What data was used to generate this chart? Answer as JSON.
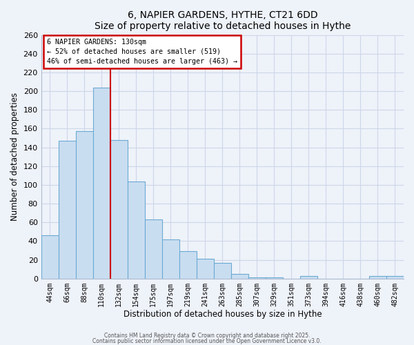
{
  "title": "6, NAPIER GARDENS, HYTHE, CT21 6DD",
  "subtitle": "Size of property relative to detached houses in Hythe",
  "xlabel": "Distribution of detached houses by size in Hythe",
  "ylabel": "Number of detached properties",
  "bin_labels": [
    "44sqm",
    "66sqm",
    "88sqm",
    "110sqm",
    "132sqm",
    "154sqm",
    "175sqm",
    "197sqm",
    "219sqm",
    "241sqm",
    "263sqm",
    "285sqm",
    "307sqm",
    "329sqm",
    "351sqm",
    "373sqm",
    "394sqm",
    "416sqm",
    "438sqm",
    "460sqm",
    "482sqm"
  ],
  "bar_values": [
    46,
    147,
    157,
    204,
    148,
    104,
    63,
    42,
    29,
    21,
    17,
    5,
    1,
    1,
    0,
    3,
    0,
    0,
    0,
    3,
    3
  ],
  "bar_color": "#c9ddf0",
  "bar_edge_color": "#6aaad4",
  "property_label": "6 NAPIER GARDENS: 130sqm",
  "smaller_pct": 52,
  "smaller_count": 519,
  "larger_pct": 46,
  "larger_count": 463,
  "vline_color": "#cc0000",
  "vline_bin_index": 3,
  "annotation_box_color": "#ffffff",
  "annotation_box_edge_color": "#cc0000",
  "ylim": [
    0,
    260
  ],
  "yticks": [
    0,
    20,
    40,
    60,
    80,
    100,
    120,
    140,
    160,
    180,
    200,
    220,
    240,
    260
  ],
  "footer1": "Contains HM Land Registry data © Crown copyright and database right 2025.",
  "footer2": "Contains public sector information licensed under the Open Government Licence v3.0.",
  "bg_color": "#eef2f9",
  "grid_color": "#cdd6e8"
}
